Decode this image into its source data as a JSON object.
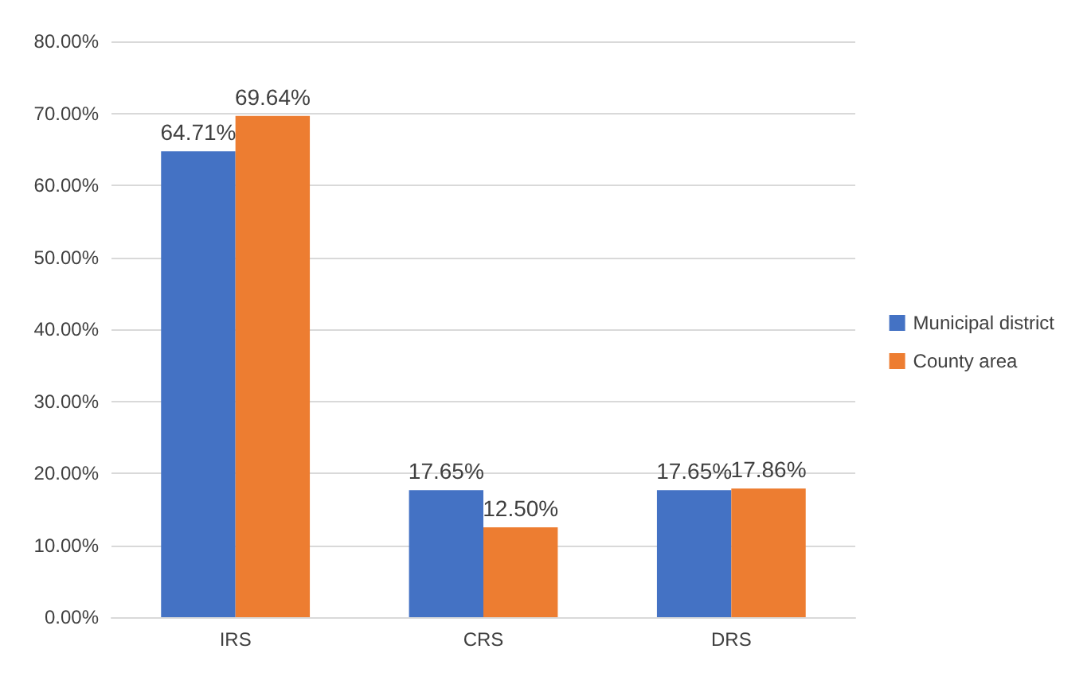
{
  "chart_data": {
    "type": "bar",
    "categories": [
      "IRS",
      "CRS",
      "DRS"
    ],
    "series": [
      {
        "name": "Municipal district",
        "color": "#4472c4",
        "values": [
          64.71,
          17.65,
          17.65
        ],
        "value_labels": [
          "64.71%",
          "17.65%",
          "17.65%"
        ]
      },
      {
        "name": "County area",
        "color": "#ed7d31",
        "values": [
          69.64,
          12.5,
          17.86
        ],
        "value_labels": [
          "69.64%",
          "12.50%",
          "17.86%"
        ]
      }
    ],
    "ylim": [
      0,
      80
    ],
    "yticks": [
      {
        "value": 0,
        "label": "0.00%"
      },
      {
        "value": 10,
        "label": "10.00%"
      },
      {
        "value": 20,
        "label": "20.00%"
      },
      {
        "value": 30,
        "label": "30.00%"
      },
      {
        "value": 40,
        "label": "40.00%"
      },
      {
        "value": 50,
        "label": "50.00%"
      },
      {
        "value": 60,
        "label": "60.00%"
      },
      {
        "value": 70,
        "label": "70.00%"
      },
      {
        "value": 80,
        "label": "80.00%"
      }
    ],
    "grid": "y",
    "legend": "right"
  }
}
